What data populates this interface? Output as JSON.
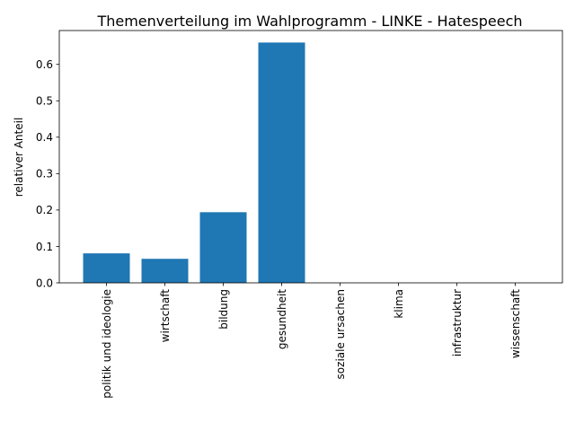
{
  "chart_data": {
    "type": "bar",
    "title": "Themenverteilung im Wahlprogramm - LINKE - Hatespeech",
    "xlabel": "",
    "ylabel": "relativer Anteil",
    "categories": [
      "politik und ideologie",
      "wirtschaft",
      "bildung",
      "gesundheit",
      "soziale ursachen",
      "klima",
      "infrastruktur",
      "wissenschaft"
    ],
    "values": [
      0.081,
      0.066,
      0.194,
      0.66,
      0.0,
      0.0,
      0.0,
      0.0
    ],
    "ylim": [
      0,
      0.693
    ],
    "yticks": [
      0.0,
      0.1,
      0.2,
      0.3,
      0.4,
      0.5,
      0.6
    ],
    "ytick_labels": [
      "0.0",
      "0.1",
      "0.2",
      "0.3",
      "0.4",
      "0.5",
      "0.6"
    ],
    "bar_color": "#1f77b4",
    "grid": false,
    "legend": "none"
  }
}
